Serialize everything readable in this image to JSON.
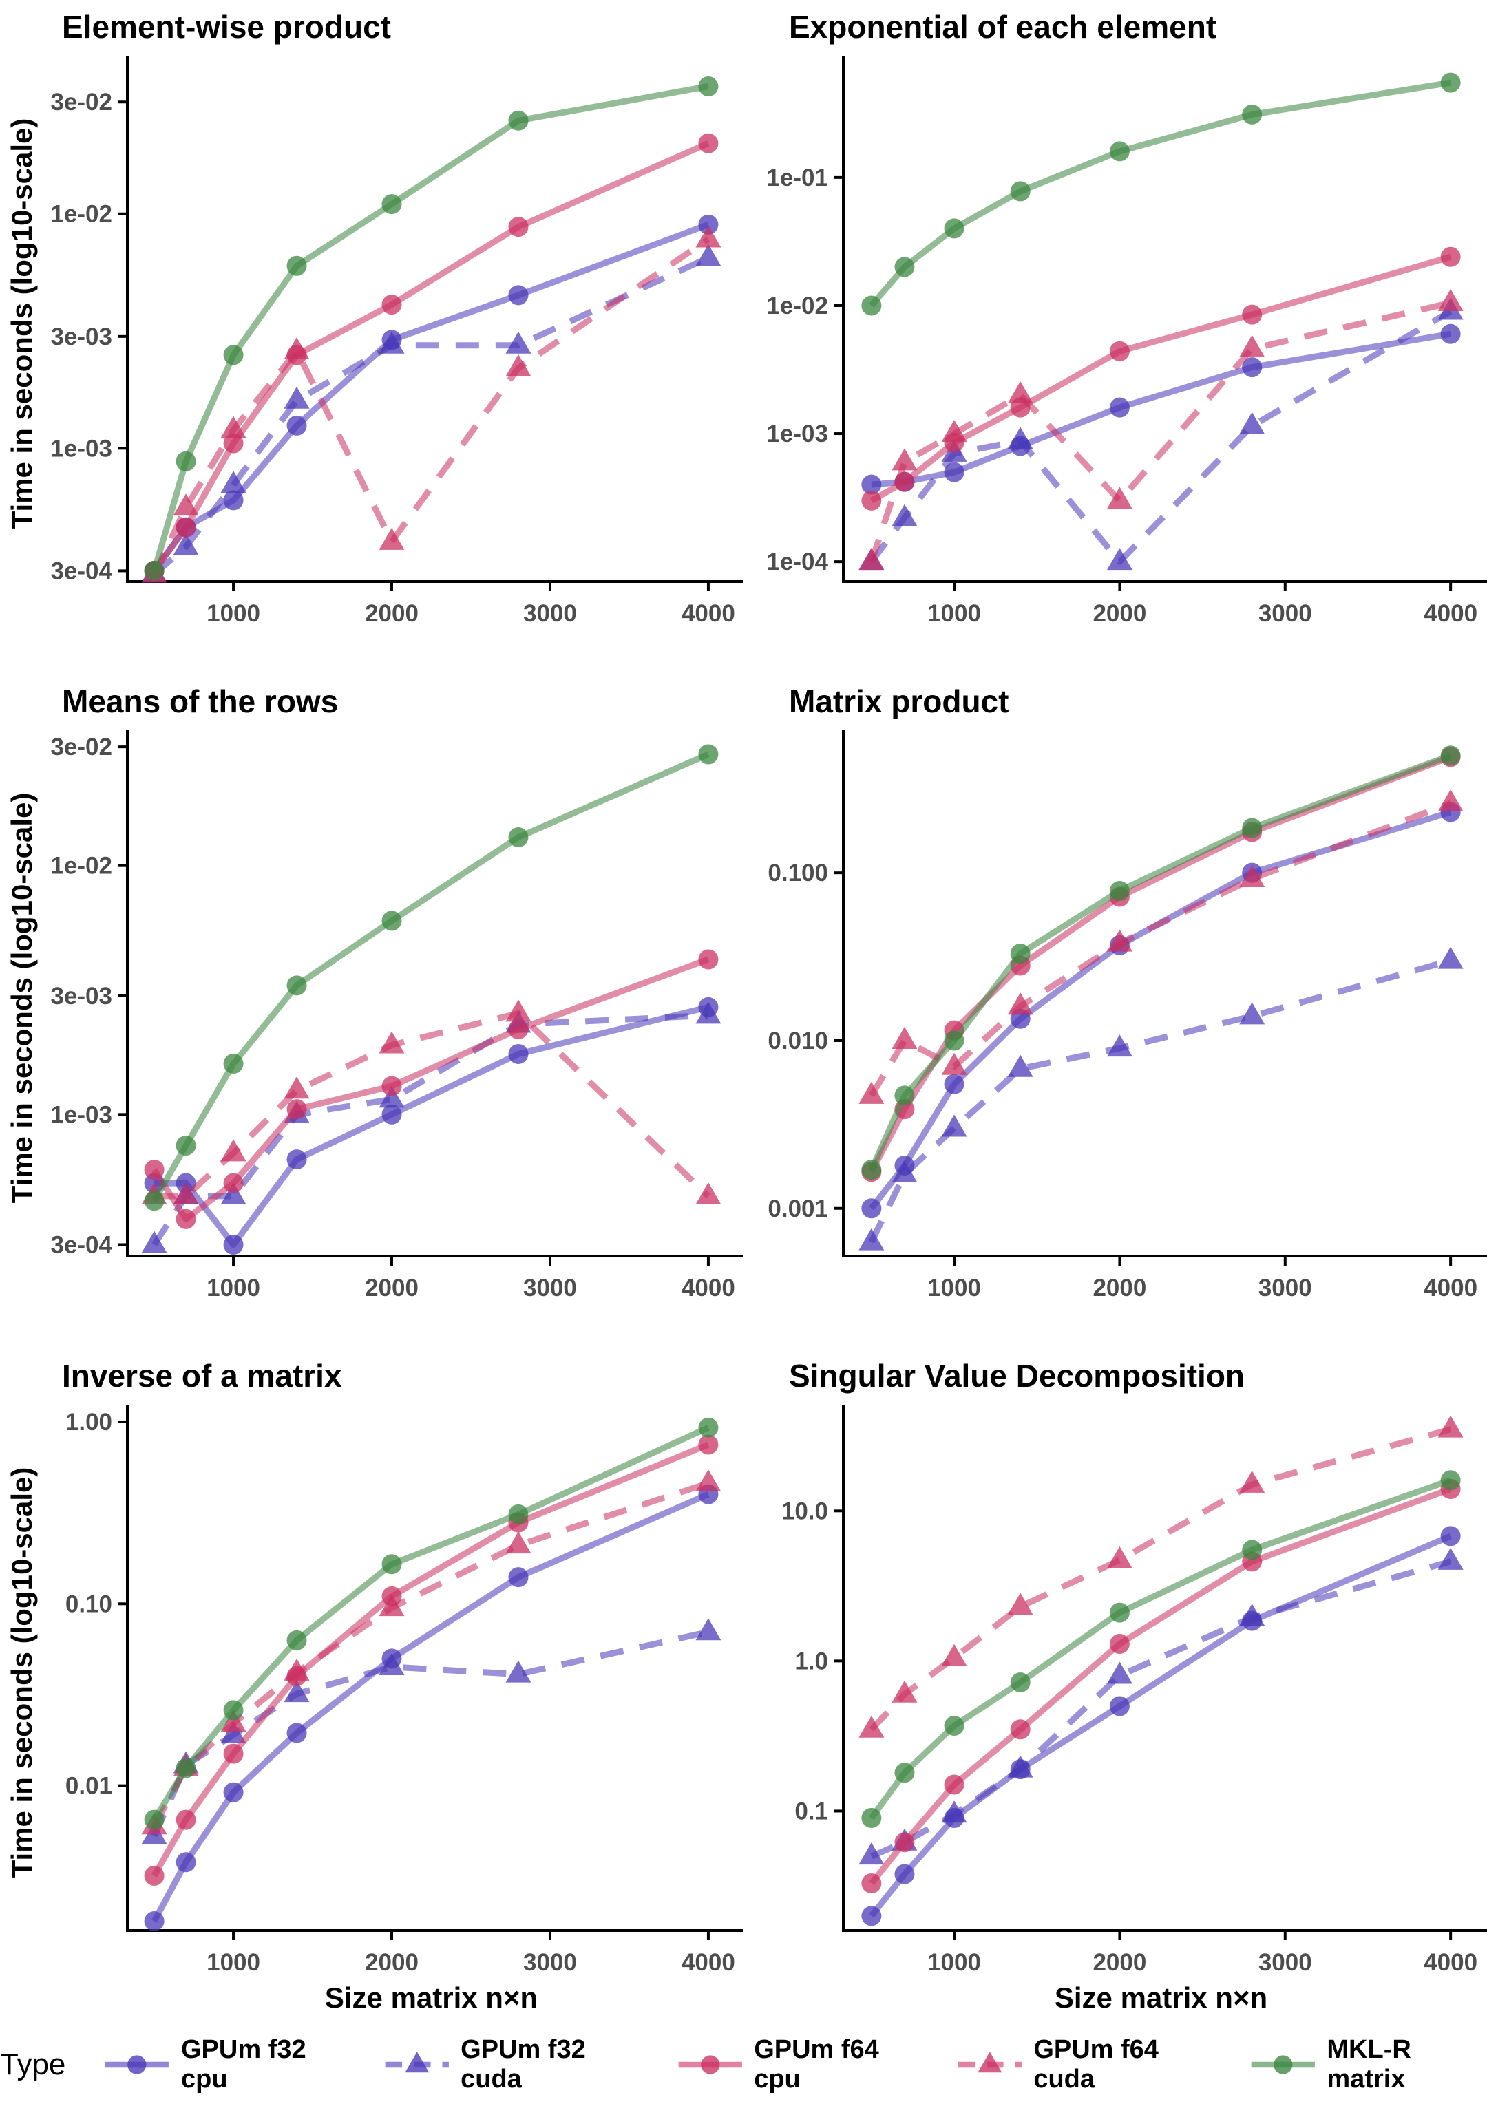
{
  "legend": {
    "title": "Type",
    "entries": [
      {
        "label": "GPUm f32 cpu",
        "color": "#4937B8",
        "marker": "circle",
        "line": "solid"
      },
      {
        "label": "GPUm f32 cuda",
        "color": "#4937B8",
        "marker": "triangle",
        "line": "dashed"
      },
      {
        "label": "GPUm f64 cpu",
        "color": "#CB2F61",
        "marker": "circle",
        "line": "solid"
      },
      {
        "label": "GPUm f64 cuda",
        "color": "#CB2F61",
        "marker": "triangle",
        "line": "dashed"
      },
      {
        "label": "MKL-R matrix",
        "color": "#3A8540",
        "marker": "circle",
        "line": "solid"
      }
    ]
  },
  "axes": {
    "y_title": "Time in seconds (log10-scale)",
    "x_title": "Size matrix n×n"
  },
  "chart_data": [
    {
      "type": "line",
      "title": "Element-wise product",
      "ylabel": "Time in seconds (log10-scale)",
      "xlabel": "",
      "x": [
        500,
        700,
        1000,
        1400,
        2000,
        2800,
        4000
      ],
      "x_ticks": [
        1000,
        2000,
        3000,
        4000
      ],
      "xlim": [
        330,
        4170
      ],
      "ylim": [
        0.00027,
        0.043
      ],
      "grid": false,
      "y_ticks": {
        "values": [
          0.0003,
          0.001,
          0.003,
          0.01,
          0.03
        ],
        "labels": [
          "3e-04",
          "1e-03",
          "3e-03",
          "1e-02",
          "3e-02"
        ]
      },
      "series": [
        {
          "name": "GPUm f32 cpu",
          "values": [
            0.0003,
            0.00046,
            0.0006,
            0.00125,
            0.0029,
            0.0045,
            0.009
          ]
        },
        {
          "name": "GPUm f32 cuda",
          "values": [
            0.00029,
            0.00038,
            0.0007,
            0.0016,
            0.00275,
            0.00275,
            0.0065
          ]
        },
        {
          "name": "GPUm f64 cpu",
          "values": [
            0.0003,
            0.00046,
            0.00105,
            0.0025,
            0.0041,
            0.0088,
            0.02
          ]
        },
        {
          "name": "GPUm f64 cuda",
          "values": [
            0.00029,
            0.00056,
            0.0012,
            0.0026,
            0.0004,
            0.0022,
            0.0078
          ]
        },
        {
          "name": "MKL-R matrix",
          "values": [
            0.0003,
            0.00088,
            0.0025,
            0.006,
            0.011,
            0.025,
            0.035
          ]
        }
      ]
    },
    {
      "type": "line",
      "title": "Exponential of each element",
      "ylabel": "",
      "xlabel": "",
      "x": [
        500,
        700,
        1000,
        1400,
        2000,
        2800,
        4000
      ],
      "x_ticks": [
        1000,
        2000,
        3000,
        4000
      ],
      "xlim": [
        330,
        4170
      ],
      "ylim": [
        7e-05,
        0.75
      ],
      "grid": false,
      "y_ticks": {
        "values": [
          0.0001,
          0.001,
          0.01,
          0.1
        ],
        "labels": [
          "1e-04",
          "1e-03",
          "1e-02",
          "1e-01"
        ]
      },
      "series": [
        {
          "name": "GPUm f32 cpu",
          "values": [
            0.0004,
            0.00042,
            0.0005,
            0.0008,
            0.0016,
            0.0033,
            0.006
          ]
        },
        {
          "name": "GPUm f32 cuda",
          "values": [
            0.0001,
            0.00022,
            0.0007,
            0.00088,
            0.0001,
            0.00115,
            0.009
          ]
        },
        {
          "name": "GPUm f64 cpu",
          "values": [
            0.0003,
            0.00042,
            0.00085,
            0.0016,
            0.0044,
            0.0085,
            0.024
          ]
        },
        {
          "name": "GPUm f64 cuda",
          "values": [
            0.0001,
            0.0006,
            0.001,
            0.002,
            0.0003,
            0.0046,
            0.0105
          ]
        },
        {
          "name": "MKL-R matrix",
          "values": [
            0.01,
            0.02,
            0.04,
            0.078,
            0.16,
            0.31,
            0.55
          ]
        }
      ]
    },
    {
      "type": "line",
      "title": "Means of the rows",
      "ylabel": "Time in seconds (log10-scale)",
      "xlabel": "",
      "x": [
        500,
        700,
        1000,
        1400,
        2000,
        2800,
        4000
      ],
      "x_ticks": [
        1000,
        2000,
        3000,
        4000
      ],
      "xlim": [
        330,
        4170
      ],
      "ylim": [
        0.00027,
        0.032
      ],
      "grid": false,
      "y_ticks": {
        "values": [
          0.0003,
          0.001,
          0.003,
          0.01,
          0.03
        ],
        "labels": [
          "3e-04",
          "1e-03",
          "3e-03",
          "1e-02",
          "3e-02"
        ]
      },
      "series": [
        {
          "name": "GPUm f32 cpu",
          "values": [
            0.00053,
            0.00053,
            0.0003,
            0.00066,
            0.001,
            0.00175,
            0.0027
          ]
        },
        {
          "name": "GPUm f32 cuda",
          "values": [
            0.0003,
            0.00047,
            0.00047,
            0.001,
            0.00115,
            0.0023,
            0.0025
          ]
        },
        {
          "name": "GPUm f64 cpu",
          "values": [
            0.0006,
            0.00038,
            0.00053,
            0.00105,
            0.0013,
            0.0022,
            0.0042
          ]
        },
        {
          "name": "GPUm f64 cuda",
          "values": [
            0.00047,
            0.00047,
            0.0007,
            0.00125,
            0.0019,
            0.00255,
            0.00047
          ]
        },
        {
          "name": "MKL-R matrix",
          "values": [
            0.00045,
            0.00075,
            0.0016,
            0.0033,
            0.006,
            0.013,
            0.028
          ]
        }
      ]
    },
    {
      "type": "line",
      "title": "Matrix product",
      "ylabel": "",
      "xlabel": "",
      "x": [
        500,
        700,
        1000,
        1400,
        2000,
        2800,
        4000
      ],
      "x_ticks": [
        1000,
        2000,
        3000,
        4000
      ],
      "xlim": [
        330,
        4170
      ],
      "ylim": [
        0.00052,
        0.62
      ],
      "grid": false,
      "y_ticks": {
        "values": [
          0.001,
          0.01,
          0.1
        ],
        "labels": [
          "0.001",
          "0.010",
          "0.100"
        ]
      },
      "series": [
        {
          "name": "GPUm f32 cpu",
          "values": [
            0.001,
            0.0018,
            0.0055,
            0.0135,
            0.037,
            0.1,
            0.23
          ]
        },
        {
          "name": "GPUm f32 cuda",
          "values": [
            0.00063,
            0.0016,
            0.003,
            0.0068,
            0.009,
            0.014,
            0.03
          ]
        },
        {
          "name": "GPUm f64 cpu",
          "values": [
            0.00165,
            0.0039,
            0.0115,
            0.028,
            0.072,
            0.175,
            0.49
          ]
        },
        {
          "name": "GPUm f64 cuda",
          "values": [
            0.0047,
            0.01,
            0.007,
            0.016,
            0.038,
            0.092,
            0.26
          ]
        },
        {
          "name": "MKL-R matrix",
          "values": [
            0.0017,
            0.0047,
            0.01,
            0.033,
            0.078,
            0.185,
            0.5
          ]
        }
      ]
    },
    {
      "type": "line",
      "title": "Inverse of a matrix",
      "ylabel": "Time in seconds (log10-scale)",
      "xlabel": "Size matrix n×n",
      "x": [
        500,
        700,
        1000,
        1400,
        2000,
        2800,
        4000
      ],
      "x_ticks": [
        1000,
        2000,
        3000,
        4000
      ],
      "xlim": [
        330,
        4170
      ],
      "ylim": [
        0.0016,
        1.1
      ],
      "grid": false,
      "y_ticks": {
        "values": [
          0.01,
          0.1,
          1
        ],
        "labels": [
          "0.01",
          "0.10",
          "1.00"
        ]
      },
      "series": [
        {
          "name": "GPUm f32 cpu",
          "values": [
            0.0018,
            0.0038,
            0.0092,
            0.0195,
            0.05,
            0.14,
            0.4
          ]
        },
        {
          "name": "GPUm f32 cuda",
          "values": [
            0.0053,
            0.013,
            0.019,
            0.032,
            0.045,
            0.041,
            0.07
          ]
        },
        {
          "name": "GPUm f64 cpu",
          "values": [
            0.0032,
            0.0065,
            0.015,
            0.04,
            0.11,
            0.28,
            0.75
          ]
        },
        {
          "name": "GPUm f64 cuda",
          "values": [
            0.006,
            0.0125,
            0.022,
            0.042,
            0.095,
            0.21,
            0.46
          ]
        },
        {
          "name": "MKL-R matrix",
          "values": [
            0.0065,
            0.0125,
            0.026,
            0.063,
            0.165,
            0.31,
            0.93
          ]
        }
      ]
    },
    {
      "type": "line",
      "title": "Singular Value Decomposition",
      "ylabel": "",
      "xlabel": "Size matrix n×n",
      "x": [
        500,
        700,
        1000,
        1400,
        2000,
        2800,
        4000
      ],
      "x_ticks": [
        1000,
        2000,
        3000,
        4000
      ],
      "xlim": [
        330,
        4170
      ],
      "ylim": [
        0.016,
        44
      ],
      "grid": false,
      "y_ticks": {
        "values": [
          0.1,
          1,
          10
        ],
        "labels": [
          "0.1",
          "1.0",
          "10.0"
        ]
      },
      "series": [
        {
          "name": "GPUm f32 cpu",
          "values": [
            0.02,
            0.038,
            0.09,
            0.19,
            0.5,
            1.85,
            6.8
          ]
        },
        {
          "name": "GPUm f32 cuda",
          "values": [
            0.05,
            0.062,
            0.095,
            0.19,
            0.8,
            1.95,
            4.6
          ]
        },
        {
          "name": "GPUm f64 cpu",
          "values": [
            0.033,
            0.062,
            0.15,
            0.35,
            1.3,
            4.6,
            14
          ]
        },
        {
          "name": "GPUm f64 cuda",
          "values": [
            0.35,
            0.6,
            1.05,
            2.3,
            4.7,
            15,
            35
          ]
        },
        {
          "name": "MKL-R matrix",
          "values": [
            0.09,
            0.18,
            0.37,
            0.72,
            2.1,
            5.5,
            16
          ]
        }
      ]
    }
  ]
}
